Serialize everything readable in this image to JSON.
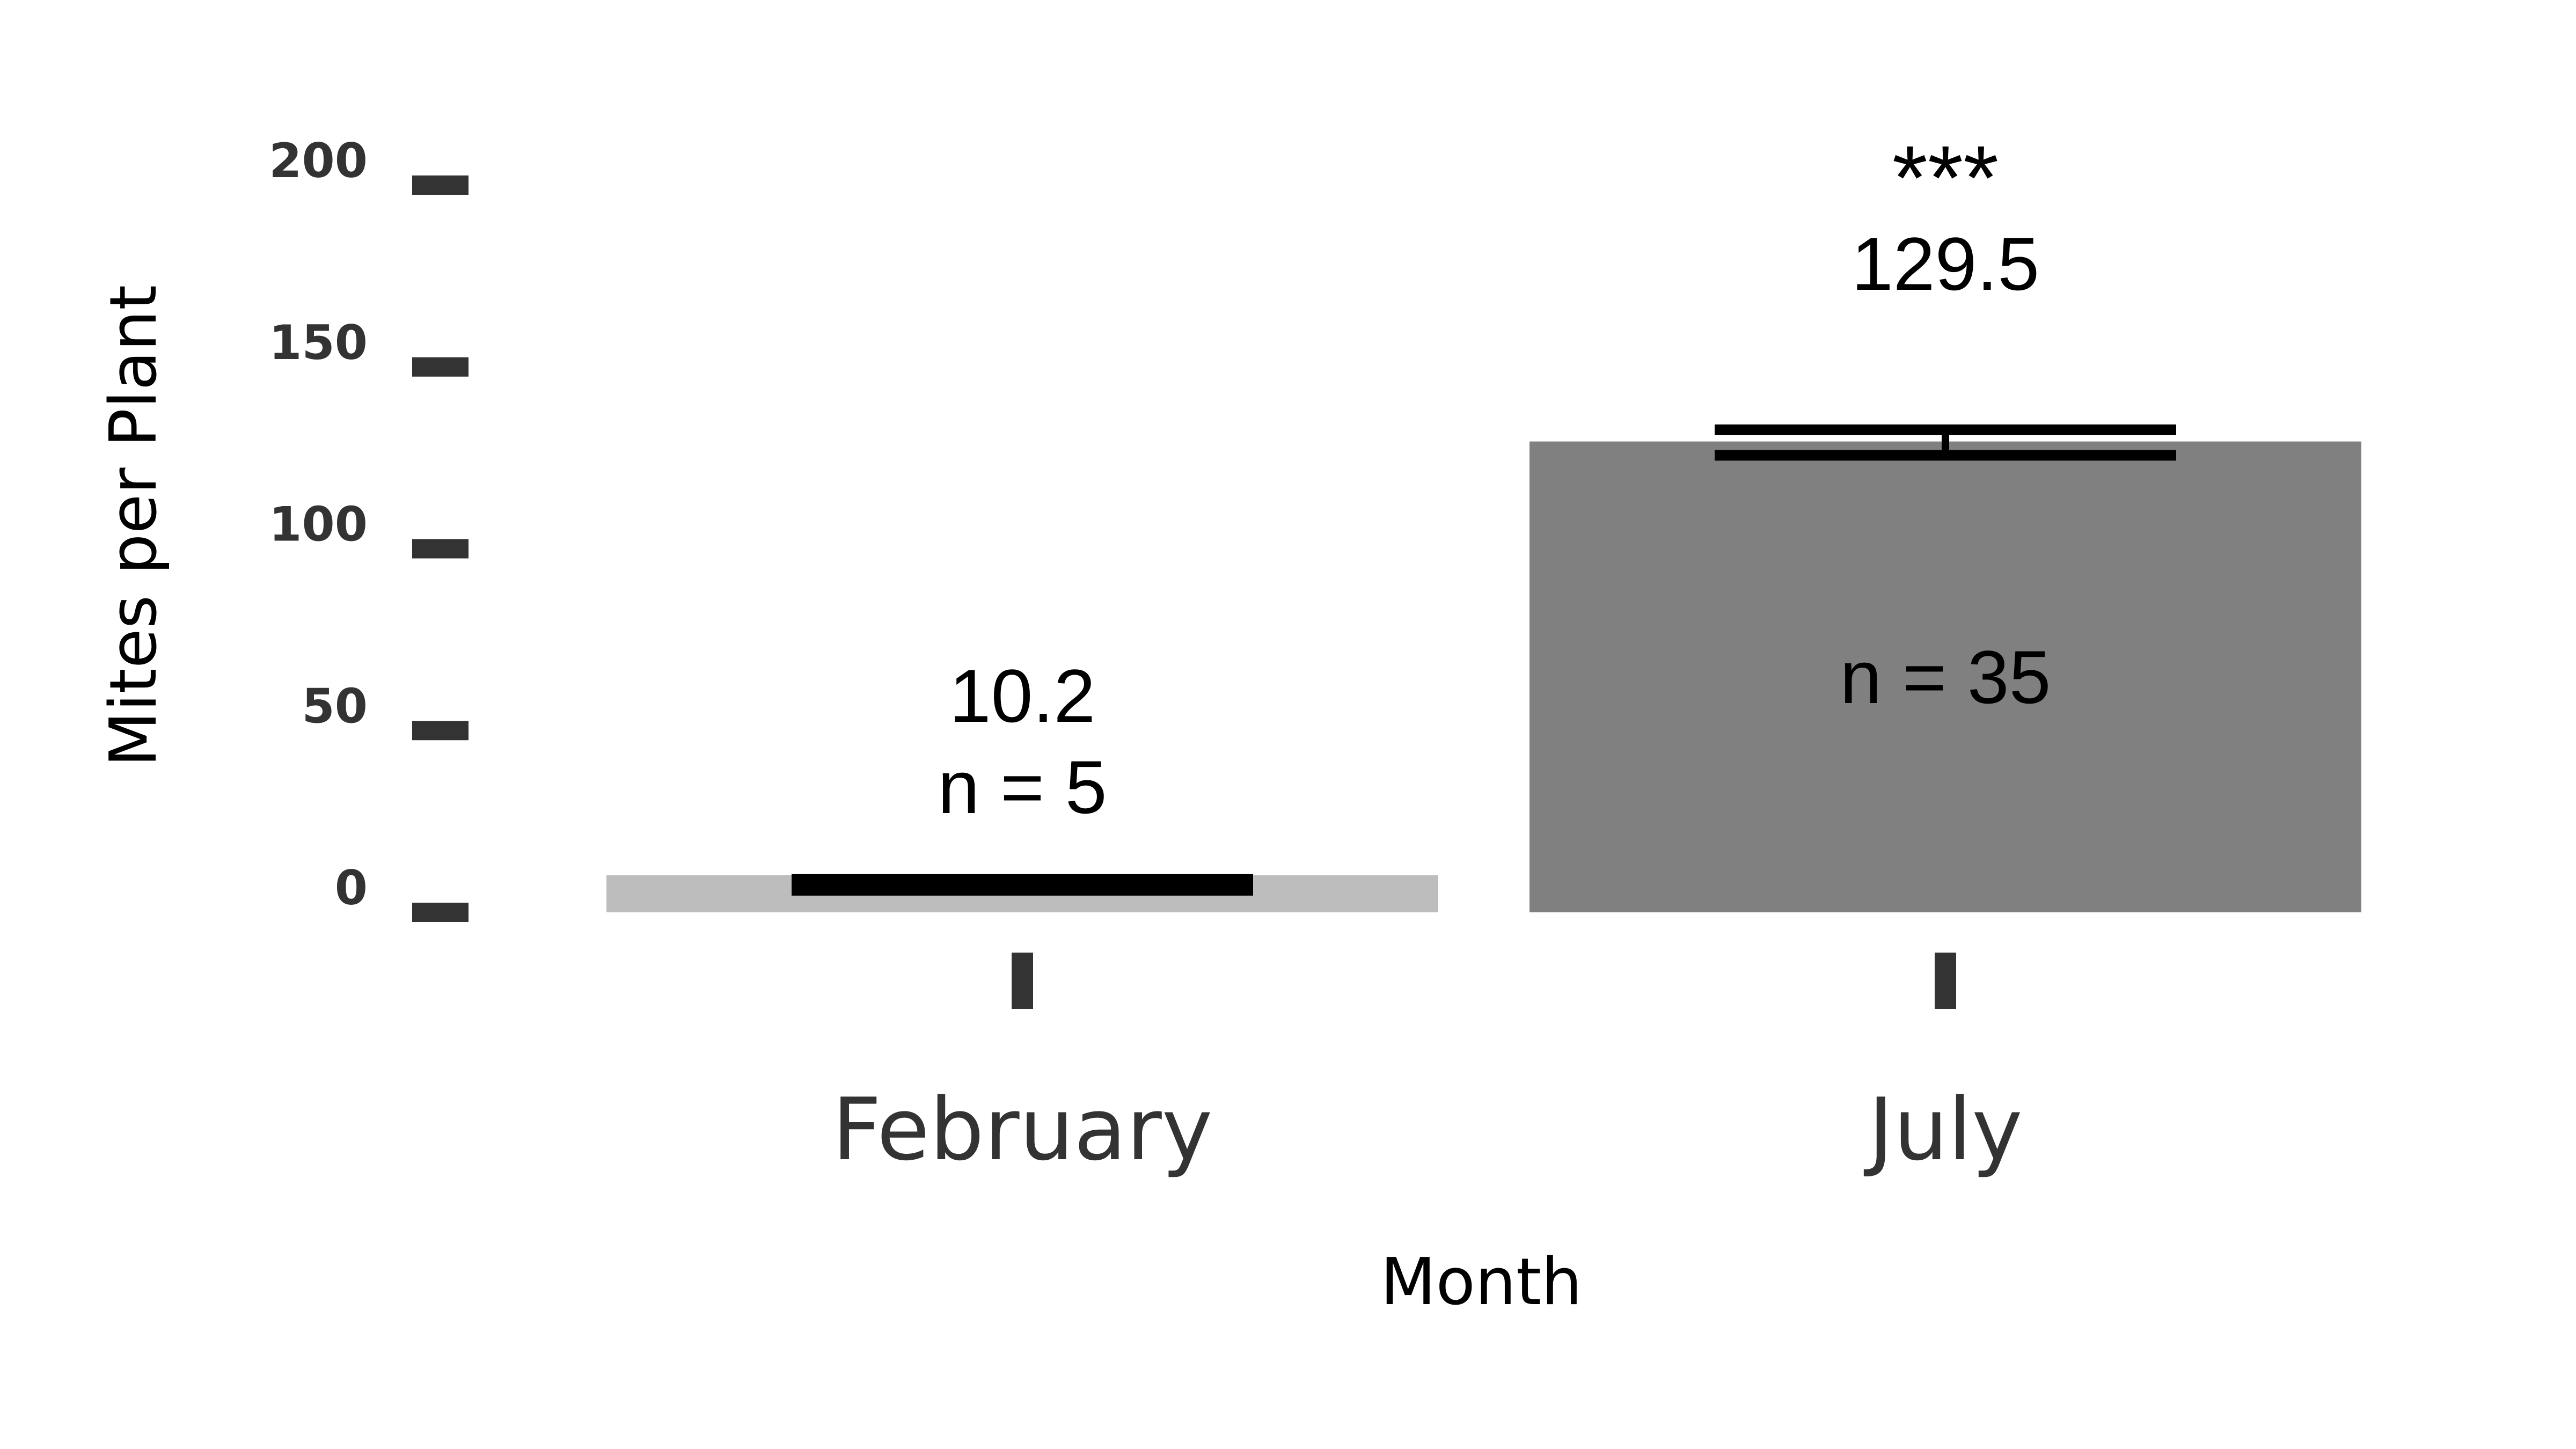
{
  "chart_data": {
    "type": "bar",
    "title": "",
    "xlabel": "Month",
    "ylabel": "Mites per Plant",
    "ylim": [
      0,
      200
    ],
    "yticks": [
      0,
      50,
      100,
      150,
      200
    ],
    "categories": [
      "February",
      "July"
    ],
    "values": [
      10.2,
      129.5
    ],
    "error_bars": [
      {
        "low": 8,
        "high": 10.5
      },
      {
        "low": 126,
        "high": 133
      }
    ],
    "colors": [
      "#bdbdbd",
      "#808080"
    ],
    "annotations": [
      {
        "category": "February",
        "mean_label": "10.2",
        "n_label": "n = 5",
        "significance": ""
      },
      {
        "category": "July",
        "mean_label": "129.5",
        "n_label": "n = 35",
        "significance": "***"
      }
    ],
    "grid": false,
    "legend": "none"
  }
}
